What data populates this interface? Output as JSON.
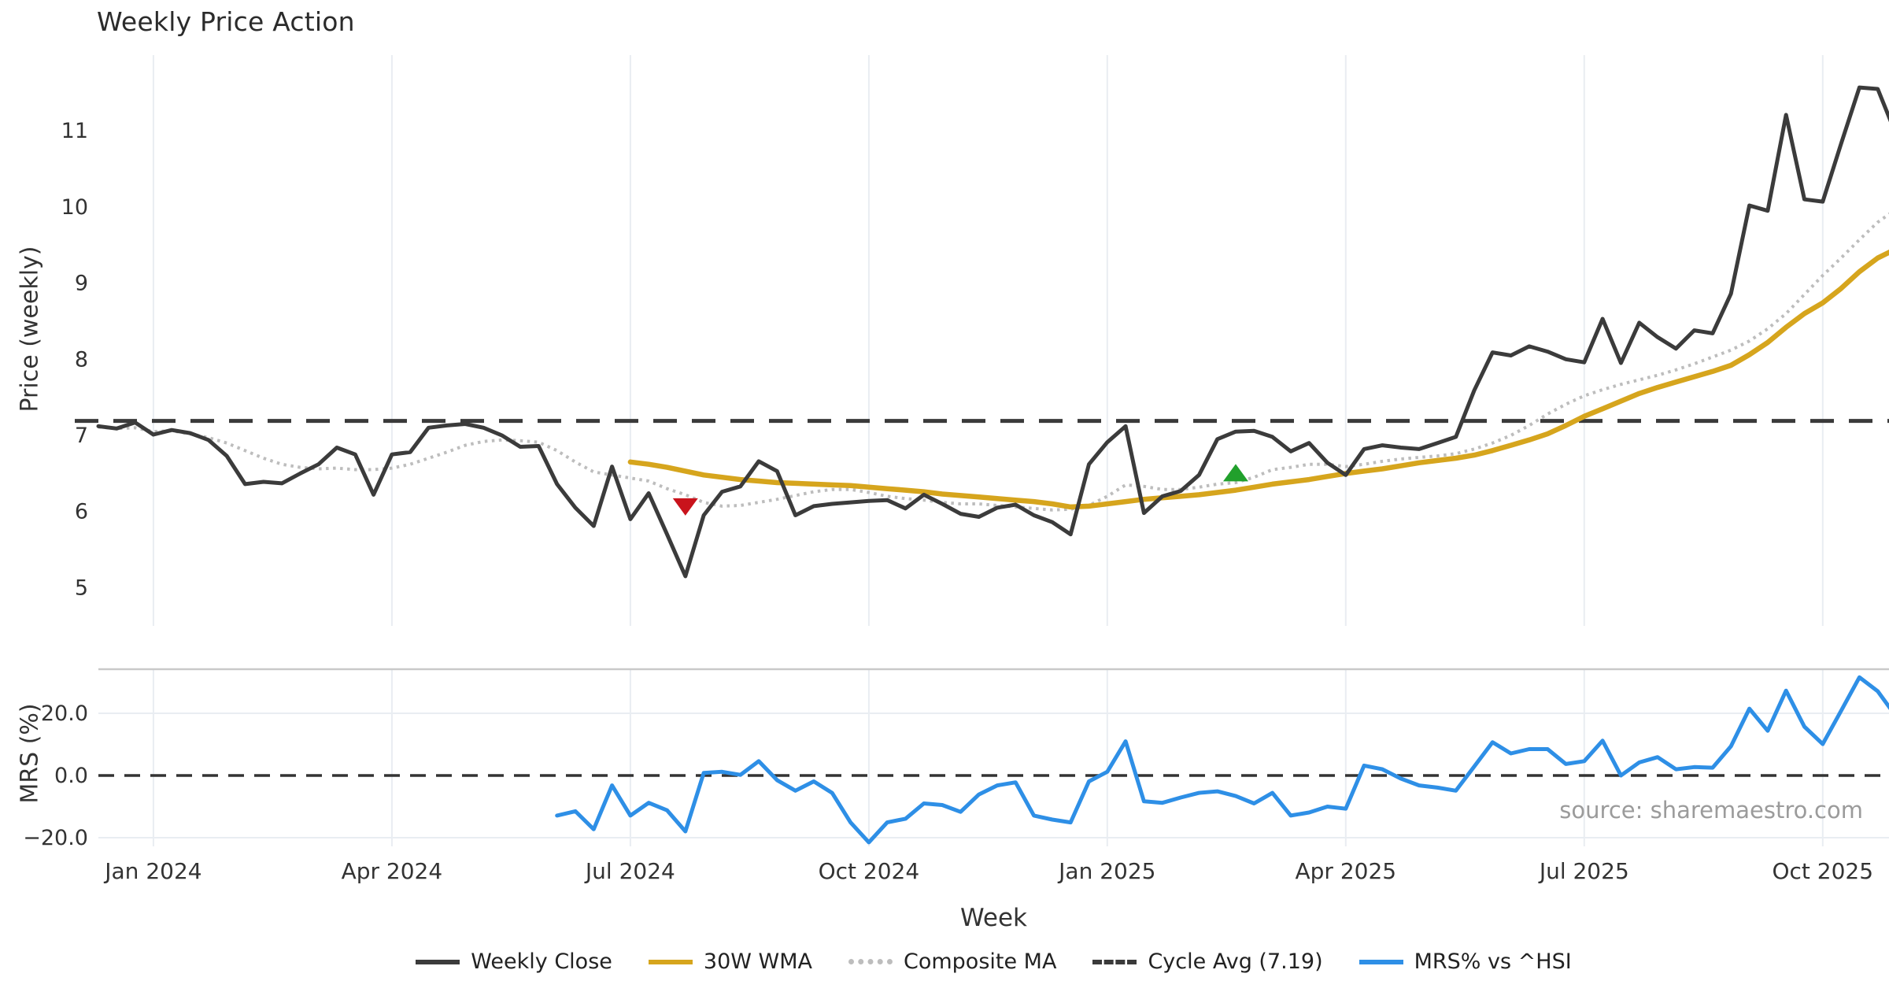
{
  "title": "Weekly Price Action",
  "source_note": "source: sharemaestro.com",
  "colors": {
    "weekly_close": "#3b3b3b",
    "wma_30w": "#d6a51d",
    "composite_ma": "#bdbdbd",
    "cycle_avg": "#3a3a3a",
    "mrs_line": "#2e8fe6",
    "sell_marker": "#c9131c",
    "buy_marker": "#21a02c",
    "grid": "#e9edf2",
    "panel_border": "#c9c9c9",
    "tick_text": "#333333"
  },
  "chart_data": {
    "type": "line",
    "title": "Weekly Price Action",
    "xlabel": "Week",
    "x_unit": "weekly index (Dec 2023 – Nov 2025)",
    "n_points": 99,
    "x_tick_indices": [
      3,
      16,
      29,
      42,
      55,
      68,
      81,
      94
    ],
    "x_tick_labels": [
      "Jan 2024",
      "Apr 2024",
      "Jul 2024",
      "Oct 2024",
      "Jan 2025",
      "Apr 2025",
      "Jul 2025",
      "Oct 2025"
    ],
    "legend_position": "bottom-center",
    "grid": "vertical-only-on-price-panel",
    "main_panel": {
      "ylabel": "Price (weekly)",
      "ylim": [
        4.5,
        12.0
      ],
      "yticks": [
        5,
        6,
        7,
        8,
        9,
        10,
        11
      ],
      "cycle_avg_value": 7.19,
      "series": [
        {
          "name": "Weekly Close",
          "style": "solid",
          "color": "#3b3b3b",
          "start_index": 0,
          "values": [
            7.12,
            7.09,
            7.17,
            7.01,
            7.07,
            7.03,
            6.94,
            6.73,
            6.36,
            6.39,
            6.37,
            6.5,
            6.62,
            6.84,
            6.75,
            6.22,
            6.75,
            6.78,
            7.1,
            7.13,
            7.15,
            7.1,
            7.0,
            6.85,
            6.86,
            6.36,
            6.05,
            5.81,
            6.59,
            5.9,
            6.24,
            5.7,
            5.15,
            5.95,
            6.26,
            6.33,
            6.66,
            6.53,
            5.95,
            6.07,
            6.1,
            6.12,
            6.14,
            6.15,
            6.04,
            6.22,
            6.1,
            5.97,
            5.93,
            6.05,
            6.09,
            5.95,
            5.86,
            5.7,
            6.62,
            6.91,
            7.12,
            5.98,
            6.2,
            6.27,
            6.48,
            6.95,
            7.05,
            7.06,
            6.98,
            6.79,
            6.9,
            6.64,
            6.48,
            6.82,
            6.87,
            6.84,
            6.82,
            6.9,
            6.98,
            7.59,
            8.09,
            8.05,
            8.17,
            8.1,
            8.0,
            7.96,
            8.53,
            7.95,
            8.48,
            8.29,
            8.14,
            8.38,
            8.34,
            8.86,
            10.02,
            9.95,
            11.21,
            10.1,
            10.07,
            10.83,
            11.57,
            11.55,
            10.95
          ]
        },
        {
          "name": "30W WMA",
          "style": "solid",
          "color": "#d6a51d",
          "start_index": 29,
          "values": [
            6.65,
            6.62,
            6.58,
            6.53,
            6.48,
            6.45,
            6.42,
            6.4,
            6.38,
            6.37,
            6.36,
            6.35,
            6.34,
            6.32,
            6.3,
            6.28,
            6.26,
            6.23,
            6.21,
            6.19,
            6.17,
            6.15,
            6.13,
            6.1,
            6.06,
            6.07,
            6.1,
            6.13,
            6.16,
            6.18,
            6.2,
            6.22,
            6.25,
            6.28,
            6.32,
            6.36,
            6.39,
            6.42,
            6.46,
            6.5,
            6.53,
            6.56,
            6.6,
            6.64,
            6.67,
            6.7,
            6.74,
            6.8,
            6.87,
            6.94,
            7.02,
            7.13,
            7.25,
            7.35,
            7.45,
            7.55,
            7.63,
            7.7,
            7.77,
            7.84,
            7.92,
            8.06,
            8.22,
            8.42,
            8.6,
            8.74,
            8.93,
            9.15,
            9.33,
            9.45
          ]
        },
        {
          "name": "Composite MA",
          "style": "dotted",
          "color": "#bdbdbd",
          "start_index": 0,
          "values": [
            7.11,
            7.09,
            7.1,
            7.05,
            7.06,
            7.02,
            6.97,
            6.9,
            6.8,
            6.7,
            6.62,
            6.58,
            6.56,
            6.57,
            6.55,
            6.55,
            6.57,
            6.62,
            6.7,
            6.78,
            6.87,
            6.92,
            6.94,
            6.93,
            6.91,
            6.8,
            6.65,
            6.52,
            6.48,
            6.44,
            6.4,
            6.3,
            6.22,
            6.12,
            6.07,
            6.08,
            6.12,
            6.16,
            6.21,
            6.26,
            6.29,
            6.29,
            6.25,
            6.2,
            6.17,
            6.15,
            6.12,
            6.1,
            6.1,
            6.08,
            6.06,
            6.04,
            6.02,
            6.03,
            6.08,
            6.2,
            6.35,
            6.33,
            6.29,
            6.29,
            6.32,
            6.36,
            6.38,
            6.45,
            6.55,
            6.58,
            6.62,
            6.62,
            6.59,
            6.62,
            6.66,
            6.69,
            6.71,
            6.73,
            6.76,
            6.82,
            6.9,
            7.0,
            7.13,
            7.28,
            7.41,
            7.52,
            7.6,
            7.67,
            7.73,
            7.79,
            7.86,
            7.94,
            8.03,
            8.12,
            8.24,
            8.4,
            8.6,
            8.85,
            9.1,
            9.33,
            9.57,
            9.8,
            9.97
          ]
        }
      ],
      "markers": [
        {
          "name": "sell-signal",
          "shape": "triangle-down",
          "color": "#c9131c",
          "index": 32,
          "value": 6.06
        },
        {
          "name": "buy-signal",
          "shape": "triangle-up",
          "color": "#21a02c",
          "index": 62,
          "value": 6.51
        }
      ]
    },
    "lower_panel": {
      "ylabel": "MRS (%)",
      "ylim": [
        -22.8,
        34.2
      ],
      "yticks": [
        20.0,
        0.0,
        -20.0
      ],
      "ytick_labels": [
        "20.0",
        "0.0",
        "−20.0"
      ],
      "zero_line": 0.0,
      "series": [
        {
          "name": "MRS% vs ^HSI",
          "style": "solid",
          "color": "#2e8fe6",
          "start_index": 25,
          "values": [
            -12.9,
            -11.5,
            -17.3,
            -3.2,
            -12.9,
            -8.8,
            -11.2,
            -18.0,
            0.8,
            1.2,
            0.2,
            4.6,
            -1.5,
            -4.9,
            -1.9,
            -5.6,
            -15.1,
            -21.5,
            -15.1,
            -13.9,
            -9.0,
            -9.5,
            -11.7,
            -6.1,
            -3.2,
            -2.2,
            -12.9,
            -14.2,
            -15.1,
            -1.9,
            1.2,
            11.0,
            -8.3,
            -8.8,
            -7.1,
            -5.6,
            -5.1,
            -6.6,
            -9.0,
            -5.6,
            -12.9,
            -11.9,
            -10.0,
            -10.7,
            3.2,
            2.0,
            -1.0,
            -3.2,
            -3.9,
            -4.9,
            2.9,
            10.7,
            7.1,
            8.5,
            8.5,
            3.7,
            4.6,
            11.2,
            0.0,
            4.2,
            5.9,
            2.0,
            2.7,
            2.5,
            9.4,
            21.5,
            14.4,
            27.3,
            15.7,
            10.1,
            20.8,
            31.6,
            27.1,
            19.0
          ]
        }
      ]
    },
    "legend": [
      {
        "label": "Weekly Close",
        "style": "solid",
        "color": "#3b3b3b"
      },
      {
        "label": "30W WMA",
        "style": "solid",
        "color": "#d6a51d"
      },
      {
        "label": "Composite MA",
        "style": "dotted",
        "color": "#bdbdbd"
      },
      {
        "label": "Cycle Avg (7.19)",
        "style": "dashed",
        "color": "#3a3a3a"
      },
      {
        "label": "MRS% vs ^HSI",
        "style": "solid",
        "color": "#2e8fe6"
      }
    ]
  }
}
